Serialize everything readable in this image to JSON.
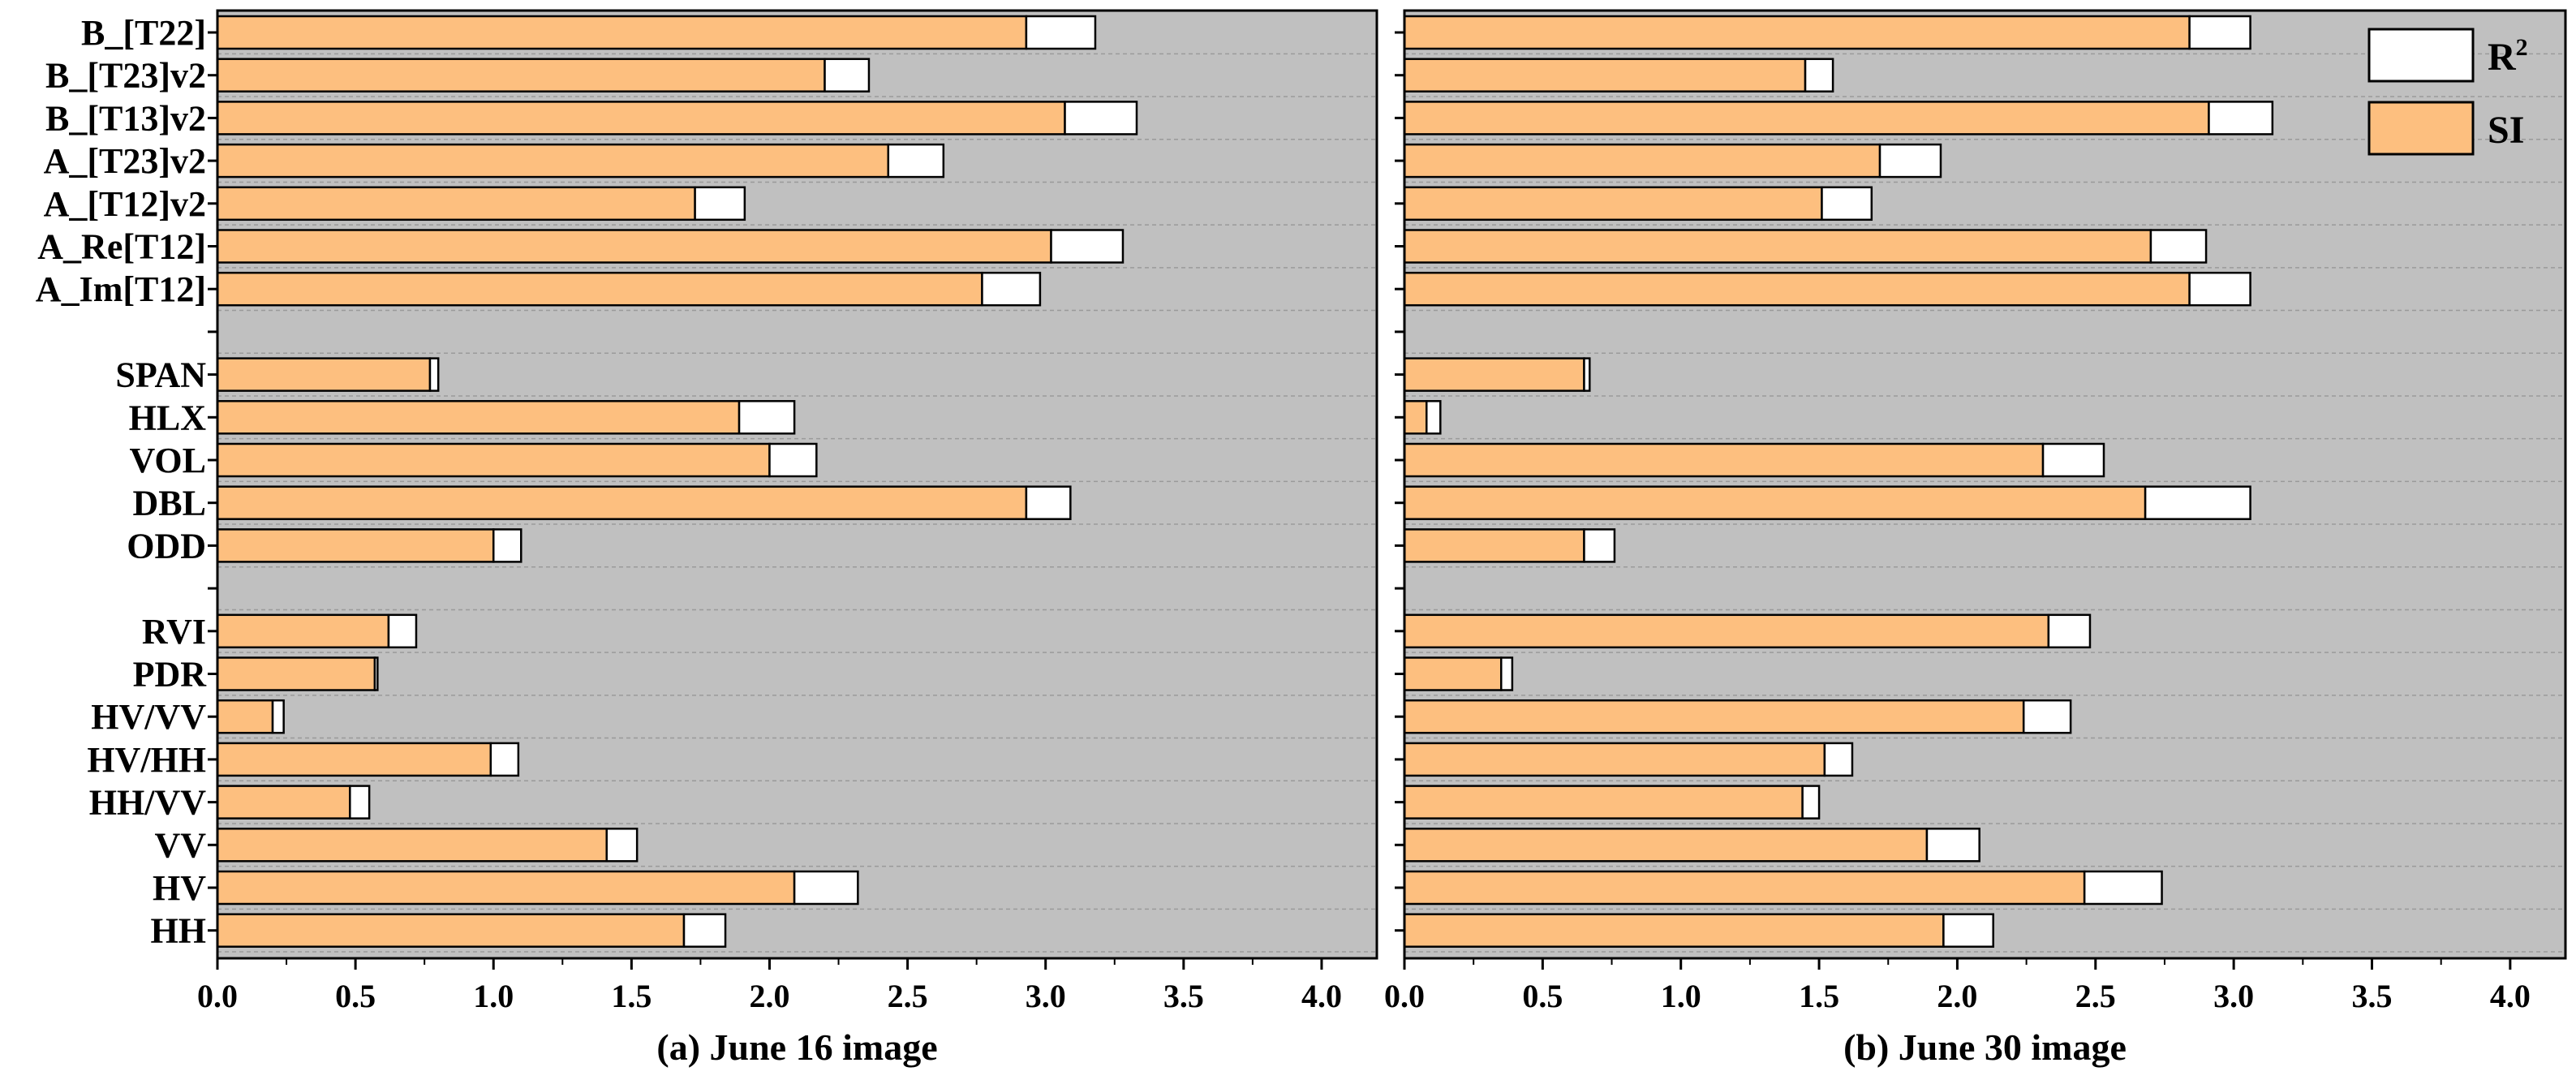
{
  "chart_data": {
    "type": "bar",
    "orientation": "horizontal",
    "stacked": true,
    "categories": [
      "B_[T22]",
      "B_[T23]v2",
      "B_[T13]v2",
      "A_[T23]v2",
      "A_[T12]v2",
      "A_Re[T12]",
      "A_Im[T12]",
      "",
      "SPAN",
      "HLX",
      "VOL",
      "DBL",
      "ODD",
      "",
      "RVI",
      "PDR",
      "HV/VV",
      "HV/HH",
      "HH/VV",
      "VV",
      "HV",
      "HH"
    ],
    "legend": {
      "position": "top-right",
      "entries": [
        {
          "label": "R",
          "superscript": "2",
          "color": "#ffffff"
        },
        {
          "label": "SI",
          "superscript": "",
          "color": "#fdbf7f"
        }
      ]
    },
    "colors": {
      "SI": "#fdbf7f",
      "R2": "#ffffff",
      "plot_background": "#c0c0c0",
      "grid": "#9a9a9a"
    },
    "xlim": [
      0,
      4.2
    ],
    "xticks": [
      "0.0",
      "0.5",
      "1.0",
      "1.5",
      "2.0",
      "2.5",
      "3.0",
      "3.5",
      "4.0"
    ],
    "grid": true,
    "panels": [
      {
        "title": "(a) June 16 image",
        "series": [
          {
            "name": "SI",
            "values": [
              2.93,
              2.2,
              3.07,
              2.43,
              1.73,
              3.02,
              2.77,
              null,
              0.77,
              1.89,
              2.0,
              2.93,
              1.0,
              null,
              0.62,
              0.57,
              0.2,
              0.99,
              0.48,
              1.41,
              2.09,
              1.69
            ]
          },
          {
            "name": "R2",
            "values": [
              0.25,
              0.16,
              0.26,
              0.2,
              0.18,
              0.26,
              0.21,
              null,
              0.03,
              0.2,
              0.17,
              0.16,
              0.1,
              null,
              0.1,
              0.01,
              0.04,
              0.1,
              0.07,
              0.11,
              0.23,
              0.15
            ]
          }
        ]
      },
      {
        "title": "(b) June 30 image",
        "series": [
          {
            "name": "SI",
            "values": [
              2.84,
              1.45,
              2.91,
              1.72,
              1.51,
              2.7,
              2.84,
              null,
              0.65,
              0.08,
              2.31,
              2.68,
              0.65,
              null,
              2.33,
              0.35,
              2.24,
              1.52,
              1.44,
              1.89,
              2.46,
              1.95
            ]
          },
          {
            "name": "R2",
            "values": [
              0.22,
              0.1,
              0.23,
              0.22,
              0.18,
              0.2,
              0.22,
              null,
              0.02,
              0.05,
              0.22,
              0.38,
              0.11,
              null,
              0.15,
              0.04,
              0.17,
              0.1,
              0.06,
              0.19,
              0.28,
              0.18
            ]
          }
        ]
      }
    ]
  }
}
